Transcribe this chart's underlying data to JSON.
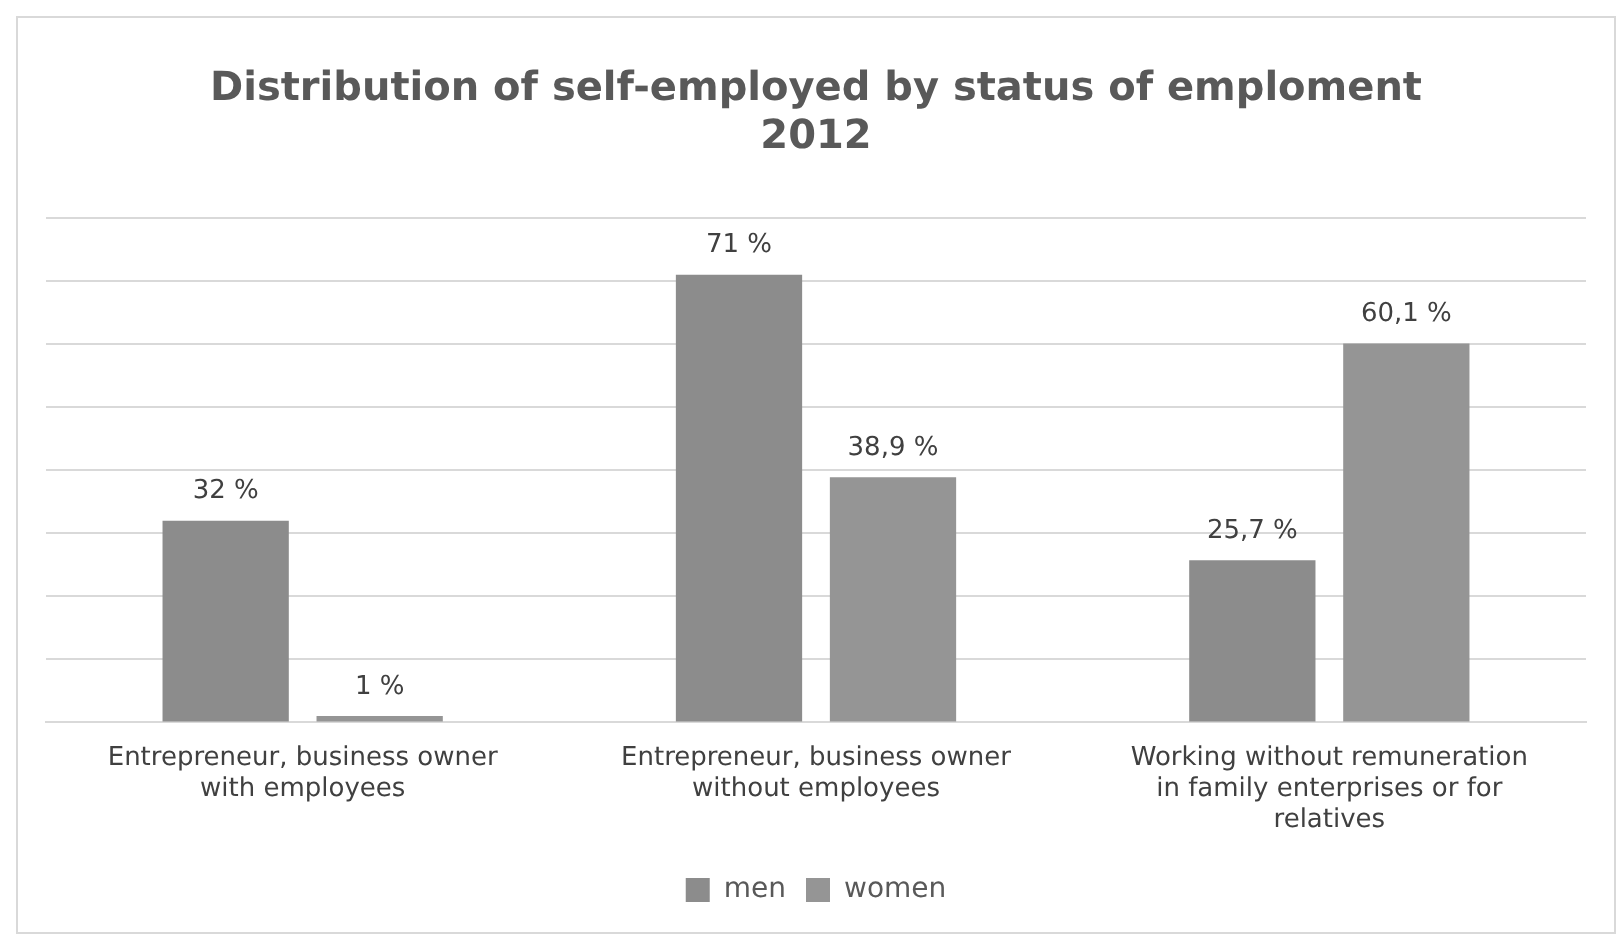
{
  "chart_data": {
    "type": "bar",
    "title": [
      "Distribution of self-employed by status of emploment",
      "2012"
    ],
    "categories": [
      "Entrepreneur, business owner with employees",
      "Entrepreneur, business owner without employees",
      "Working without remuneration in family enterprises or for relatives"
    ],
    "series": [
      {
        "name": "men",
        "color": "#8c8c8c",
        "values": [
          32,
          71,
          25.7
        ],
        "value_labels": [
          "32 %",
          "71 %",
          "25,7 %"
        ]
      },
      {
        "name": "women",
        "color": "#959595",
        "values": [
          1,
          38.9,
          60.1
        ],
        "value_labels": [
          "1 %",
          "38,9 %",
          "60,1 %"
        ]
      }
    ],
    "ylim": [
      0,
      80
    ],
    "yticks": [
      {
        "value": 0,
        "label": null
      },
      {
        "value": 10,
        "label": null
      },
      {
        "value": 20,
        "label": null
      },
      {
        "value": 30,
        "label": null
      },
      {
        "value": 40,
        "label": null
      },
      {
        "value": 50,
        "label": null
      },
      {
        "value": 60,
        "label": null
      },
      {
        "value": 70,
        "label": null
      },
      {
        "value": 80,
        "label": null
      }
    ],
    "grid": "y",
    "legend": "bottom",
    "tick_labels": "x"
  }
}
